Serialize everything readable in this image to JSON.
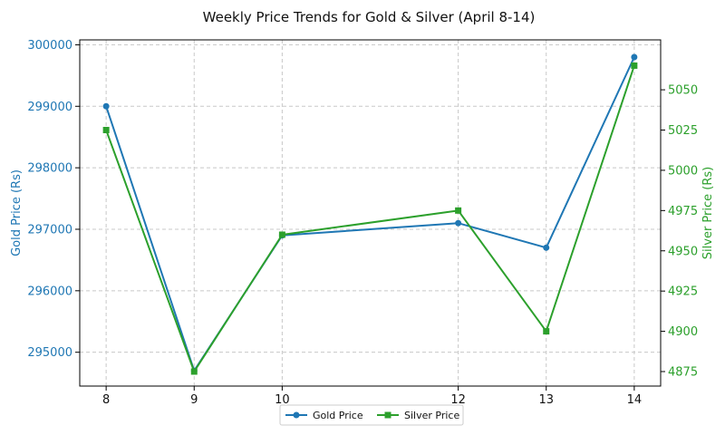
{
  "chart_data": {
    "type": "line",
    "title": "Weekly Price Trends for Gold & Silver (April 8-14)",
    "x": [
      8,
      9,
      10,
      12,
      13,
      14
    ],
    "x_ticks": [
      8,
      9,
      10,
      12,
      13,
      14
    ],
    "xlim": [
      7.7,
      14.3
    ],
    "grid": true,
    "legend_position": "bottom-center",
    "left_axis": {
      "label": "Gold Price (Rs)",
      "color": "#1f77b4",
      "ylim": [
        294450,
        300080
      ],
      "ticks": [
        295000,
        296000,
        297000,
        298000,
        299000,
        300000
      ]
    },
    "right_axis": {
      "label": "Silver Price (Rs)",
      "color": "#2ca02c",
      "ylim": [
        4866,
        5081
      ],
      "ticks": [
        4875,
        4900,
        4925,
        4950,
        4975,
        5000,
        5025,
        5050
      ]
    },
    "series": [
      {
        "name": "Gold Price",
        "axis": "left",
        "color": "#1f77b4",
        "marker": "circle",
        "values": [
          299000,
          294700,
          296900,
          297100,
          296700,
          299800
        ]
      },
      {
        "name": "Silver Price",
        "axis": "right",
        "color": "#2ca02c",
        "marker": "square",
        "values": [
          5025,
          4875,
          4960,
          4975,
          4900,
          5065
        ]
      }
    ]
  }
}
